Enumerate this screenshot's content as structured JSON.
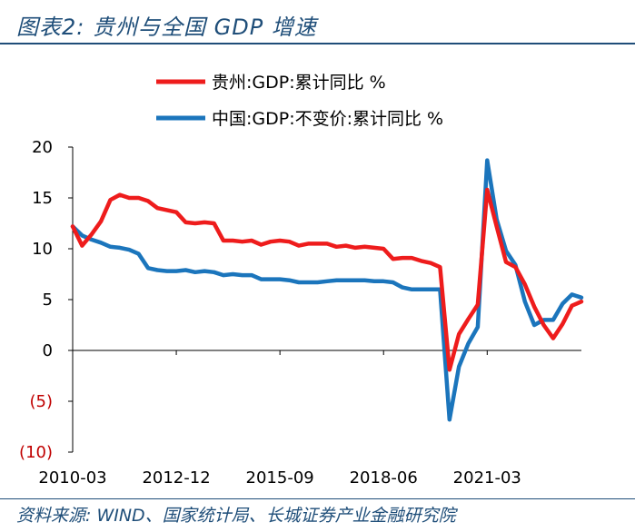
{
  "header": {
    "title": "图表2:  贵州与全国 GDP 增速"
  },
  "footer": {
    "source": "资料来源: WIND、国家统计局、长城证券产业金融研究院"
  },
  "chart_data": {
    "type": "line",
    "title": "贵州与全国 GDP 增速",
    "xlabel": "",
    "ylabel": "",
    "ylim": [
      -10,
      20
    ],
    "yticks": [
      20,
      15,
      10,
      5,
      0,
      -5,
      -10
    ],
    "ytick_labels": [
      "20",
      "15",
      "10",
      "5",
      "0",
      "(5)",
      "(10)"
    ],
    "xtick_labels": [
      "2010-03",
      "2012-12",
      "2015-09",
      "2018-06",
      "2021-03"
    ],
    "xtick_index": [
      0,
      11,
      22,
      33,
      44
    ],
    "x_count": 55,
    "legend_position": "top",
    "series": [
      {
        "name": "贵州:GDP:累计同比 %",
        "color": "#ee1c1c",
        "values": [
          12.2,
          10.3,
          11.4,
          12.7,
          14.8,
          15.3,
          15.0,
          15.0,
          14.7,
          14.0,
          13.8,
          13.6,
          12.6,
          12.5,
          12.6,
          12.5,
          10.8,
          10.8,
          10.7,
          10.8,
          10.4,
          10.7,
          10.8,
          10.7,
          10.3,
          10.5,
          10.5,
          10.5,
          10.2,
          10.3,
          10.1,
          10.2,
          10.1,
          10.0,
          9.0,
          9.1,
          9.1,
          8.8,
          8.6,
          8.2,
          -1.9,
          1.6,
          3.1,
          4.5,
          15.8,
          12.2,
          8.7,
          8.2,
          6.5,
          4.3,
          2.5,
          1.2,
          2.6,
          4.4,
          4.8
        ]
      },
      {
        "name": "中国:GDP:不变价:累计同比 %",
        "color": "#1b75bc",
        "values": [
          12.2,
          11.3,
          10.9,
          10.6,
          10.2,
          10.1,
          9.9,
          9.5,
          8.1,
          7.9,
          7.8,
          7.8,
          7.9,
          7.7,
          7.8,
          7.7,
          7.4,
          7.5,
          7.4,
          7.4,
          7.0,
          7.0,
          7.0,
          6.9,
          6.7,
          6.7,
          6.7,
          6.8,
          6.9,
          6.9,
          6.9,
          6.9,
          6.8,
          6.8,
          6.7,
          6.2,
          6.0,
          6.0,
          6.0,
          6.0,
          -6.8,
          -1.6,
          0.7,
          2.3,
          18.7,
          12.9,
          9.8,
          8.4,
          4.8,
          2.5,
          3.0,
          3.0,
          4.6,
          5.5,
          5.2
        ]
      }
    ]
  }
}
